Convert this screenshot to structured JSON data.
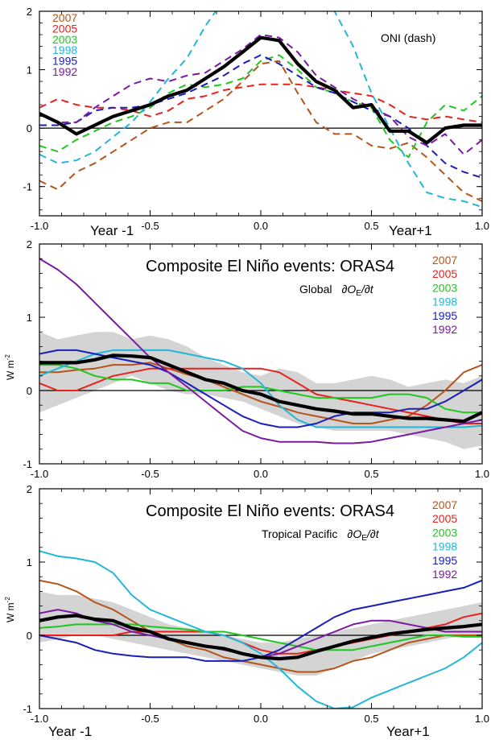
{
  "colors": {
    "2007": "#b5541b",
    "2005": "#e8211d",
    "2003": "#1fc71f",
    "1998": "#22b7d8",
    "1995": "#1a1fb8",
    "1992": "#7a1aa0",
    "composite": "#000000",
    "spread": "#d4d4d4"
  },
  "legend_years": [
    "2007",
    "2005",
    "2003",
    "1998",
    "1995",
    "1992"
  ],
  "year_labels": {
    "left": "Year -1",
    "right": "Year+1"
  },
  "chart_data": [
    {
      "type": "line",
      "annotation": "ONI (dash)",
      "xlim": [
        -1.0,
        1.0
      ],
      "ylim": [
        -1.5,
        2.0
      ],
      "x_ticks": [
        "-1.0",
        "-0.5",
        "0.0",
        "0.5",
        "1.0"
      ],
      "y_ticks": [
        "2",
        "1",
        "0",
        "-1"
      ],
      "x": [
        -1.0,
        -0.917,
        -0.833,
        -0.75,
        -0.667,
        -0.583,
        -0.5,
        -0.417,
        -0.333,
        -0.25,
        -0.167,
        -0.083,
        0.0,
        0.083,
        0.167,
        0.25,
        0.333,
        0.417,
        0.5,
        0.583,
        0.667,
        0.75,
        0.833,
        0.917,
        1.0
      ],
      "series": [
        {
          "name": "2007",
          "style": "dashed",
          "values": [
            -0.9,
            -1.05,
            -0.75,
            -0.6,
            -0.4,
            -0.2,
            0.0,
            0.1,
            0.1,
            0.3,
            0.5,
            0.8,
            1.1,
            1.15,
            0.6,
            0.1,
            -0.1,
            -0.1,
            -0.3,
            -0.35,
            -0.25,
            -0.5,
            -0.8,
            -1.1,
            -1.25
          ]
        },
        {
          "name": "2005",
          "style": "dashed",
          "values": [
            0.35,
            0.5,
            0.4,
            0.35,
            0.35,
            0.3,
            0.2,
            0.3,
            0.5,
            0.55,
            0.65,
            0.7,
            0.75,
            0.75,
            0.75,
            0.7,
            0.65,
            0.6,
            0.55,
            0.4,
            0.2,
            0.15,
            0.2,
            0.15,
            0.1
          ]
        },
        {
          "name": "2003",
          "style": "dashed",
          "values": [
            -0.3,
            -0.4,
            -0.2,
            -0.05,
            0.1,
            0.2,
            0.35,
            0.6,
            0.75,
            0.7,
            0.75,
            0.85,
            1.15,
            1.25,
            1.0,
            0.7,
            0.6,
            0.45,
            0.35,
            -0.2,
            -0.5,
            0.1,
            0.4,
            0.3,
            0.55
          ]
        },
        {
          "name": "1998",
          "style": "dashed",
          "values": [
            -0.45,
            -0.6,
            -0.55,
            -0.4,
            -0.15,
            0.1,
            0.45,
            0.85,
            1.2,
            1.75,
            2.2,
            2.25,
            2.35,
            2.35,
            2.3,
            2.2,
            2.0,
            1.4,
            0.6,
            0.0,
            -0.6,
            -1.1,
            -1.2,
            -1.25,
            -1.35
          ]
        },
        {
          "name": "1995",
          "style": "dashed",
          "values": [
            0.05,
            0.05,
            0.1,
            0.3,
            0.35,
            0.35,
            0.4,
            0.5,
            0.6,
            0.75,
            0.9,
            1.1,
            1.25,
            1.1,
            0.9,
            0.7,
            0.6,
            0.45,
            0.3,
            0.2,
            0.0,
            -0.3,
            -0.6,
            -0.75,
            -0.85
          ]
        },
        {
          "name": "1992",
          "style": "dashed",
          "values": [
            0.25,
            0.1,
            0.1,
            0.35,
            0.55,
            0.75,
            0.85,
            0.8,
            0.9,
            0.95,
            1.15,
            1.35,
            1.6,
            1.55,
            1.3,
            0.9,
            0.7,
            0.5,
            0.35,
            0.2,
            -0.15,
            -0.3,
            -0.1,
            -0.45,
            -0.2
          ]
        },
        {
          "name": "composite",
          "style": "thick",
          "values": [
            0.25,
            0.1,
            -0.1,
            0.05,
            0.2,
            0.3,
            0.4,
            0.55,
            0.65,
            0.85,
            1.05,
            1.3,
            1.55,
            1.5,
            1.1,
            0.8,
            0.65,
            0.35,
            0.4,
            -0.05,
            -0.05,
            -0.25,
            0.0,
            0.05,
            0.05
          ]
        }
      ]
    },
    {
      "type": "line",
      "title": "Composite El Niño events: ORAS4",
      "subtitle_prefix": "Global",
      "subtitle_formula": "∂O",
      "subtitle_sub": "E",
      "subtitle_suffix": "/∂t",
      "ylabel": "W m",
      "ylabel_sup": "-2",
      "xlim": [
        -1.0,
        1.0
      ],
      "ylim": [
        -1.0,
        2.0
      ],
      "x_ticks": [
        "-1.0",
        "-0.5",
        "0.0",
        "0.5",
        "1.0"
      ],
      "y_ticks": [
        "2",
        "1",
        "0",
        "-1"
      ],
      "x": [
        -1.0,
        -0.917,
        -0.833,
        -0.75,
        -0.667,
        -0.583,
        -0.5,
        -0.417,
        -0.333,
        -0.25,
        -0.167,
        -0.083,
        0.0,
        0.083,
        0.167,
        0.25,
        0.333,
        0.417,
        0.5,
        0.583,
        0.667,
        0.75,
        0.833,
        0.917,
        1.0
      ],
      "band_upper": [
        0.8,
        0.7,
        0.75,
        0.8,
        0.8,
        0.7,
        0.75,
        0.7,
        0.6,
        0.45,
        0.35,
        0.25,
        0.2,
        0.3,
        0.25,
        0.1,
        0.1,
        0.15,
        0.2,
        0.15,
        0.05,
        0.1,
        0.15,
        0.1,
        0.2
      ],
      "band_lower": [
        -0.3,
        -0.2,
        -0.1,
        0.0,
        0.1,
        0.2,
        0.1,
        0.0,
        -0.05,
        -0.05,
        -0.1,
        -0.15,
        -0.25,
        -0.35,
        -0.45,
        -0.5,
        -0.55,
        -0.55,
        -0.55,
        -0.55,
        -0.6,
        -0.65,
        -0.7,
        -0.8,
        -0.75
      ],
      "series": [
        {
          "name": "2007",
          "values": [
            0.25,
            0.25,
            0.28,
            0.3,
            0.35,
            0.35,
            0.38,
            0.3,
            0.22,
            0.15,
            0.05,
            -0.05,
            -0.15,
            -0.22,
            -0.3,
            -0.35,
            -0.4,
            -0.45,
            -0.45,
            -0.4,
            -0.35,
            -0.2,
            0.0,
            0.25,
            0.35
          ]
        },
        {
          "name": "2005",
          "values": [
            0.1,
            0.0,
            0.0,
            0.1,
            0.2,
            0.25,
            0.3,
            0.3,
            0.3,
            0.3,
            0.3,
            0.3,
            0.3,
            0.25,
            0.1,
            -0.05,
            -0.1,
            -0.15,
            -0.2,
            -0.25,
            -0.3,
            -0.35,
            -0.4,
            -0.45,
            -0.45
          ]
        },
        {
          "name": "2003",
          "values": [
            0.35,
            0.35,
            0.3,
            0.2,
            0.15,
            0.15,
            0.1,
            0.1,
            0.0,
            0.0,
            0.0,
            0.05,
            0.05,
            0.0,
            -0.05,
            -0.1,
            -0.1,
            -0.1,
            -0.1,
            -0.05,
            -0.05,
            -0.1,
            -0.25,
            -0.3,
            -0.3
          ]
        },
        {
          "name": "1998",
          "values": [
            0.2,
            0.3,
            0.4,
            0.5,
            0.55,
            0.55,
            0.55,
            0.55,
            0.5,
            0.45,
            0.4,
            0.3,
            0.1,
            -0.2,
            -0.4,
            -0.5,
            -0.5,
            -0.5,
            -0.5,
            -0.5,
            -0.5,
            -0.5,
            -0.5,
            -0.5,
            -0.48
          ]
        },
        {
          "name": "1995",
          "values": [
            0.5,
            0.55,
            0.55,
            0.5,
            0.45,
            0.4,
            0.35,
            0.25,
            0.1,
            -0.05,
            -0.2,
            -0.35,
            -0.45,
            -0.5,
            -0.5,
            -0.45,
            -0.35,
            -0.3,
            -0.3,
            -0.3,
            -0.25,
            -0.25,
            -0.15,
            0.0,
            0.15
          ]
        },
        {
          "name": "1992",
          "values": [
            1.8,
            1.65,
            1.45,
            1.2,
            0.95,
            0.7,
            0.45,
            0.25,
            0.05,
            -0.15,
            -0.35,
            -0.55,
            -0.65,
            -0.7,
            -0.7,
            -0.7,
            -0.72,
            -0.72,
            -0.7,
            -0.65,
            -0.6,
            -0.55,
            -0.5,
            -0.45,
            -0.4
          ]
        },
        {
          "name": "composite",
          "style": "thick",
          "values": [
            0.38,
            0.38,
            0.38,
            0.42,
            0.48,
            0.47,
            0.45,
            0.35,
            0.25,
            0.15,
            0.1,
            0.0,
            -0.05,
            -0.15,
            -0.2,
            -0.25,
            -0.28,
            -0.32,
            -0.32,
            -0.35,
            -0.38,
            -0.38,
            -0.4,
            -0.42,
            -0.3
          ]
        }
      ]
    },
    {
      "type": "line",
      "title": "Composite El Niño events: ORAS4",
      "subtitle_prefix": "Tropical Pacific",
      "subtitle_formula": "∂O",
      "subtitle_sub": "E",
      "subtitle_suffix": "/∂t",
      "ylabel": "W m",
      "ylabel_sup": "-2",
      "xlim": [
        -1.0,
        1.0
      ],
      "ylim": [
        -1.0,
        2.0
      ],
      "x_ticks": [
        "-1.0",
        "-0.5",
        "0.0",
        "0.5",
        "1.0"
      ],
      "y_ticks": [
        "2",
        "1",
        "0",
        "-1"
      ],
      "x": [
        -1.0,
        -0.917,
        -0.833,
        -0.75,
        -0.667,
        -0.583,
        -0.5,
        -0.417,
        -0.333,
        -0.25,
        -0.167,
        -0.083,
        0.0,
        0.083,
        0.167,
        0.25,
        0.333,
        0.417,
        0.5,
        0.583,
        0.667,
        0.75,
        0.833,
        0.917,
        1.0
      ],
      "band_upper": [
        0.6,
        0.55,
        0.55,
        0.5,
        0.45,
        0.35,
        0.25,
        0.15,
        0.1,
        0.05,
        0.0,
        -0.05,
        -0.1,
        -0.1,
        -0.05,
        0.0,
        0.05,
        0.1,
        0.15,
        0.2,
        0.25,
        0.3,
        0.35,
        0.4,
        0.45
      ],
      "band_lower": [
        -0.1,
        -0.05,
        0.0,
        0.0,
        -0.05,
        -0.1,
        -0.15,
        -0.2,
        -0.25,
        -0.3,
        -0.35,
        -0.4,
        -0.45,
        -0.5,
        -0.55,
        -0.55,
        -0.45,
        -0.35,
        -0.25,
        -0.2,
        -0.15,
        -0.1,
        -0.05,
        0.0,
        0.0
      ],
      "series": [
        {
          "name": "2007",
          "values": [
            0.75,
            0.7,
            0.6,
            0.45,
            0.35,
            0.2,
            0.05,
            -0.05,
            -0.15,
            -0.2,
            -0.3,
            -0.35,
            -0.4,
            -0.45,
            -0.5,
            -0.5,
            -0.45,
            -0.35,
            -0.3,
            -0.2,
            -0.1,
            -0.05,
            0.0,
            0.0,
            0.0
          ]
        },
        {
          "name": "2005",
          "values": [
            0.0,
            0.0,
            0.0,
            0.0,
            0.0,
            0.05,
            0.05,
            0.05,
            0.05,
            0.05,
            0.0,
            -0.1,
            -0.2,
            -0.25,
            -0.25,
            -0.2,
            -0.15,
            -0.1,
            -0.05,
            0.0,
            0.05,
            0.1,
            0.15,
            0.25,
            0.3
          ]
        },
        {
          "name": "2003",
          "values": [
            0.1,
            0.12,
            0.15,
            0.15,
            0.15,
            0.15,
            0.12,
            0.1,
            0.08,
            0.05,
            0.05,
            0.0,
            -0.05,
            -0.1,
            -0.15,
            -0.2,
            -0.2,
            -0.2,
            -0.15,
            -0.1,
            -0.05,
            0.0,
            0.0,
            -0.02,
            -0.02
          ]
        },
        {
          "name": "1998",
          "values": [
            1.15,
            1.08,
            1.05,
            1.0,
            0.85,
            0.55,
            0.35,
            0.25,
            0.15,
            0.05,
            0.0,
            -0.1,
            -0.25,
            -0.45,
            -0.7,
            -0.9,
            -1.0,
            -0.98,
            -0.85,
            -0.75,
            -0.65,
            -0.55,
            -0.45,
            -0.3,
            -0.1
          ]
        },
        {
          "name": "1995",
          "values": [
            0.0,
            -0.05,
            -0.1,
            -0.2,
            -0.25,
            -0.28,
            -0.3,
            -0.3,
            -0.3,
            -0.35,
            -0.35,
            -0.35,
            -0.3,
            -0.2,
            -0.05,
            0.1,
            0.25,
            0.35,
            0.4,
            0.45,
            0.5,
            0.55,
            0.6,
            0.65,
            0.75
          ]
        },
        {
          "name": "1992",
          "values": [
            0.3,
            0.35,
            0.3,
            0.2,
            0.15,
            0.05,
            0.0,
            -0.05,
            -0.1,
            -0.15,
            -0.2,
            -0.25,
            -0.3,
            -0.25,
            -0.15,
            -0.05,
            0.05,
            0.15,
            0.2,
            0.2,
            0.15,
            0.1,
            0.05,
            0.05,
            0.05
          ]
        },
        {
          "name": "composite",
          "style": "thick",
          "values": [
            0.2,
            0.25,
            0.27,
            0.22,
            0.2,
            0.1,
            0.05,
            -0.05,
            -0.1,
            -0.15,
            -0.18,
            -0.25,
            -0.3,
            -0.32,
            -0.3,
            -0.22,
            -0.15,
            -0.08,
            -0.03,
            0.02,
            0.05,
            0.08,
            0.1,
            0.12,
            0.15
          ]
        }
      ]
    }
  ]
}
